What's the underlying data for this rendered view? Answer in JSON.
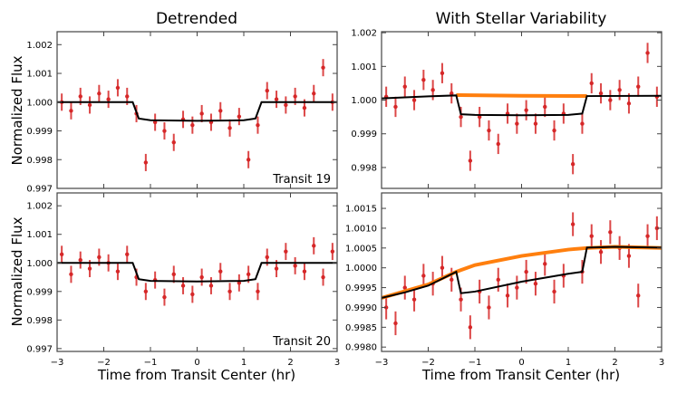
{
  "colors": {
    "data": "#d62728",
    "model": "#000000",
    "stellar": "#ff7f0e"
  },
  "chart_data": [
    {
      "type": "scatter",
      "title": "Detrended",
      "ylabel": "Normalized Flux",
      "xlabel": "",
      "label": "Transit 19",
      "xlim": [
        -3,
        3
      ],
      "ylim": [
        0.997,
        1.00245
      ],
      "xticks": [
        -3,
        -2,
        -1,
        0,
        1,
        2,
        3
      ],
      "yticks": [
        0.997,
        0.998,
        0.999,
        1.0,
        1.001,
        1.002
      ],
      "ytick_labels": [
        "0.997",
        "0.998",
        "0.999",
        "1.000",
        "1.001",
        "1.002"
      ],
      "xtick_labels": [],
      "err": 0.0003,
      "x": [
        -2.9,
        -2.7,
        -2.5,
        -2.3,
        -2.1,
        -1.9,
        -1.7,
        -1.5,
        -1.3,
        -1.1,
        -0.9,
        -0.7,
        -0.5,
        -0.3,
        -0.1,
        0.1,
        0.3,
        0.5,
        0.7,
        0.9,
        1.1,
        1.3,
        1.5,
        1.7,
        1.9,
        2.1,
        2.3,
        2.5,
        2.7,
        2.9
      ],
      "y": [
        1.0,
        0.9997,
        1.0002,
        0.9999,
        1.0003,
        1.0001,
        1.0005,
        1.0002,
        0.9996,
        0.9979,
        0.9993,
        0.999,
        0.9986,
        0.9994,
        0.9992,
        0.9996,
        0.9993,
        0.9997,
        0.9991,
        0.9995,
        0.998,
        0.9992,
        1.0004,
        1.0001,
        0.9999,
        1.0002,
        0.9998,
        1.0003,
        1.0012,
        1.0
      ],
      "model": [
        [
          -3,
          1.0
        ],
        [
          -1.38,
          1.0
        ],
        [
          -1.25,
          0.99943
        ],
        [
          -1,
          0.99937
        ],
        [
          0,
          0.99935
        ],
        [
          1,
          0.99937
        ],
        [
          1.25,
          0.99943
        ],
        [
          1.38,
          1.0
        ],
        [
          3,
          1.0
        ]
      ],
      "stellar": []
    },
    {
      "type": "scatter",
      "title": "With Stellar Variability",
      "ylabel": "",
      "xlabel": "",
      "label": "",
      "xlim": [
        -3,
        3
      ],
      "ylim": [
        0.99738,
        1.00203
      ],
      "xticks": [
        -3,
        -2,
        -1,
        0,
        1,
        2,
        3
      ],
      "yticks": [
        0.998,
        0.999,
        1.0,
        1.001,
        1.002
      ],
      "ytick_labels": [
        "0.998",
        "0.999",
        "1.000",
        "1.001",
        "1.002"
      ],
      "xtick_labels": [],
      "err": 0.0003,
      "x": [
        -2.9,
        -2.7,
        -2.5,
        -2.3,
        -2.1,
        -1.9,
        -1.7,
        -1.5,
        -1.3,
        -1.1,
        -0.9,
        -0.7,
        -0.5,
        -0.3,
        -0.1,
        0.1,
        0.3,
        0.5,
        0.7,
        0.9,
        1.1,
        1.3,
        1.5,
        1.7,
        1.9,
        2.1,
        2.3,
        2.5,
        2.7,
        2.9
      ],
      "y": [
        1.0001,
        0.9998,
        1.0004,
        1.0,
        1.0006,
        1.0003,
        1.0008,
        1.0002,
        0.9995,
        0.9982,
        0.9995,
        0.9991,
        0.9987,
        0.9996,
        0.9993,
        0.9997,
        0.9993,
        0.9998,
        0.9991,
        0.9996,
        0.9981,
        0.9993,
        1.0005,
        1.0002,
        1.0,
        1.0003,
        0.9999,
        1.0004,
        1.0014,
        1.0001
      ],
      "model": [
        [
          -3,
          1.00005
        ],
        [
          -2,
          1.00011
        ],
        [
          -1.4,
          1.00014
        ],
        [
          -1.3,
          0.99958
        ],
        [
          -1,
          0.99956
        ],
        [
          0,
          0.99955
        ],
        [
          1,
          0.99956
        ],
        [
          1.3,
          0.9996
        ],
        [
          1.4,
          1.00012
        ],
        [
          3,
          1.00013
        ]
      ],
      "stellar": [
        [
          -1.4,
          1.00015
        ],
        [
          0,
          1.00013
        ],
        [
          1.4,
          1.00012
        ]
      ]
    },
    {
      "type": "scatter",
      "title": "",
      "ylabel": "Normalized Flux",
      "xlabel": "Time from Transit Center (hr)",
      "label": "Transit 20",
      "xlim": [
        -3,
        3
      ],
      "ylim": [
        0.9969,
        1.00245
      ],
      "xticks": [
        -3,
        -2,
        -1,
        0,
        1,
        2,
        3
      ],
      "yticks": [
        0.997,
        0.998,
        0.999,
        1.0,
        1.001,
        1.002
      ],
      "ytick_labels": [
        "0.997",
        "0.998",
        "0.999",
        "1.000",
        "1.001",
        "1.002"
      ],
      "xtick_labels": [
        "−3",
        "−2",
        "−1",
        "0",
        "1",
        "2",
        "3"
      ],
      "err": 0.0003,
      "x": [
        -2.9,
        -2.7,
        -2.5,
        -2.3,
        -2.1,
        -1.9,
        -1.7,
        -1.5,
        -1.3,
        -1.1,
        -0.9,
        -0.7,
        -0.5,
        -0.3,
        -0.1,
        0.1,
        0.3,
        0.5,
        0.7,
        0.9,
        1.1,
        1.3,
        1.5,
        1.7,
        1.9,
        2.1,
        2.3,
        2.5,
        2.7,
        2.9
      ],
      "y": [
        1.0003,
        0.9996,
        1.0001,
        0.9998,
        1.0002,
        1.0,
        0.9997,
        1.0003,
        0.9995,
        0.999,
        0.9994,
        0.9988,
        0.9996,
        0.9992,
        0.9989,
        0.9995,
        0.9992,
        0.9997,
        0.999,
        0.9993,
        0.9996,
        0.999,
        1.0002,
        0.9998,
        1.0004,
        0.9999,
        0.9997,
        1.0006,
        0.9995,
        1.0004
      ],
      "model": [
        [
          -3,
          1.0
        ],
        [
          -1.38,
          1.0
        ],
        [
          -1.25,
          0.99943
        ],
        [
          -1,
          0.99937
        ],
        [
          0,
          0.99935
        ],
        [
          1,
          0.99937
        ],
        [
          1.25,
          0.99943
        ],
        [
          1.38,
          1.0
        ],
        [
          3,
          1.0
        ]
      ],
      "stellar": []
    },
    {
      "type": "scatter",
      "title": "",
      "ylabel": "",
      "xlabel": "Time from Transit Center (hr)",
      "label": "",
      "xlim": [
        -3,
        3
      ],
      "ylim": [
        0.99789,
        1.00189
      ],
      "xticks": [
        -3,
        -2,
        -1,
        0,
        1,
        2,
        3
      ],
      "yticks": [
        0.998,
        0.9985,
        0.999,
        0.9995,
        1.0,
        1.0005,
        1.001,
        1.0015
      ],
      "ytick_labels": [
        "0.9980",
        "0.9985",
        "0.9990",
        "0.9995",
        "1.0000",
        "1.0005",
        "1.0010",
        "1.0015"
      ],
      "xtick_labels": [
        "−3",
        "−2",
        "−1",
        "0",
        "1",
        "2",
        "3"
      ],
      "err": 0.0003,
      "x": [
        -2.9,
        -2.7,
        -2.5,
        -2.3,
        -2.1,
        -1.9,
        -1.7,
        -1.5,
        -1.3,
        -1.1,
        -0.9,
        -0.7,
        -0.5,
        -0.3,
        -0.1,
        0.1,
        0.3,
        0.5,
        0.7,
        0.9,
        1.1,
        1.3,
        1.5,
        1.7,
        1.9,
        2.1,
        2.3,
        2.5,
        2.7,
        2.9
      ],
      "y": [
        0.999,
        0.9986,
        0.9995,
        0.9992,
        0.9998,
        0.9996,
        1.0,
        0.9997,
        0.9992,
        0.9985,
        0.9994,
        0.999,
        0.9997,
        0.9993,
        0.9995,
        0.9999,
        0.9996,
        1.0001,
        0.9994,
        0.9998,
        1.0011,
        0.9999,
        1.0008,
        1.0004,
        1.0009,
        1.0005,
        1.0003,
        0.9993,
        1.0008,
        1.001
      ],
      "model": [
        [
          -3,
          0.99924
        ],
        [
          -2.5,
          0.99938
        ],
        [
          -2,
          0.99955
        ],
        [
          -1.4,
          0.9999
        ],
        [
          -1.3,
          0.99936
        ],
        [
          -1,
          0.9994
        ],
        [
          0,
          0.99965
        ],
        [
          1,
          0.99985
        ],
        [
          1.3,
          0.9999
        ],
        [
          1.4,
          1.00051
        ],
        [
          2,
          1.00053
        ],
        [
          3,
          1.00051
        ]
      ],
      "stellar": [
        [
          -3,
          0.99924
        ],
        [
          -2,
          0.99958
        ],
        [
          -1.4,
          0.9999
        ],
        [
          -1,
          1.00007
        ],
        [
          0,
          1.0003
        ],
        [
          1,
          1.00046
        ],
        [
          1.4,
          1.0005
        ],
        [
          2,
          1.00053
        ],
        [
          3,
          1.0005
        ]
      ]
    }
  ]
}
